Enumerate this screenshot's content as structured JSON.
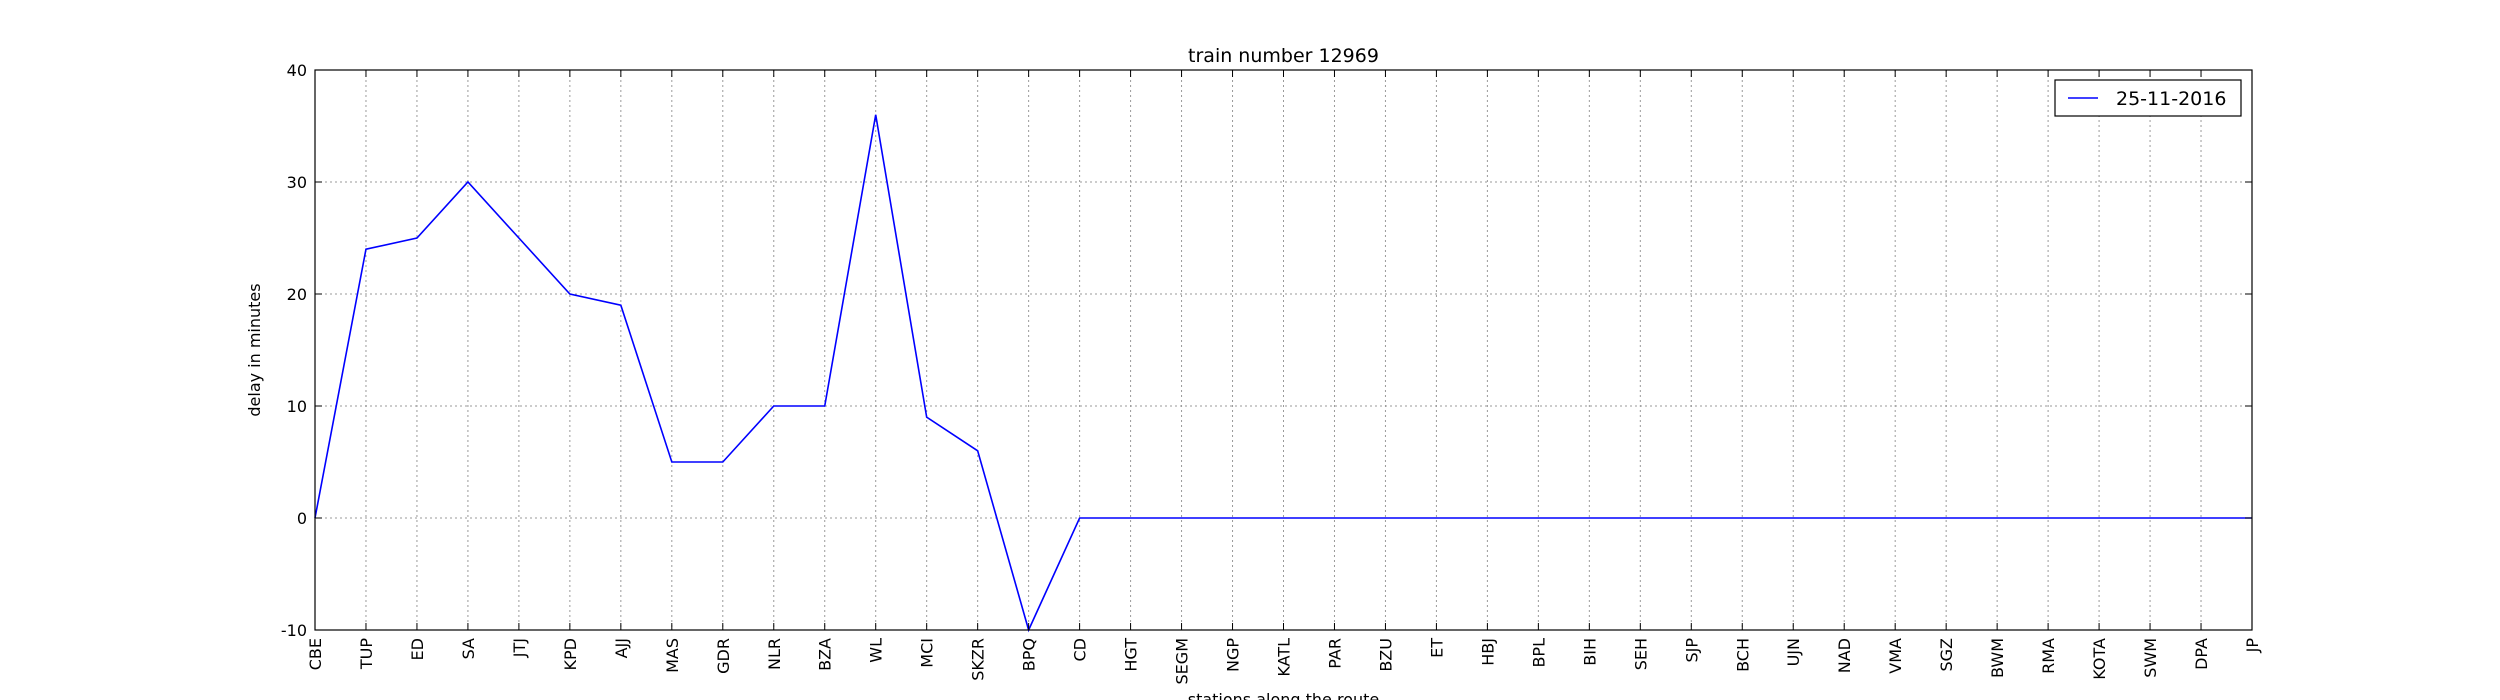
{
  "chart_data": {
    "type": "line",
    "title": "train number 12969",
    "xlabel": "stations along the route",
    "ylabel": "delay in minutes",
    "categories": [
      "CBE",
      "TUP",
      "ED",
      "SA",
      "JTJ",
      "KPD",
      "AJJ",
      "MAS",
      "GDR",
      "NLR",
      "BZA",
      "WL",
      "MCI",
      "SKZR",
      "BPQ",
      "CD",
      "HGT",
      "SEGM",
      "NGP",
      "KATL",
      "PAR",
      "BZU",
      "ET",
      "HBJ",
      "BPL",
      "BIH",
      "SEH",
      "SJP",
      "BCH",
      "UJN",
      "NAD",
      "VMA",
      "SGZ",
      "BWM",
      "RMA",
      "KOTA",
      "SWM",
      "DPA",
      "JP"
    ],
    "series": [
      {
        "name": "25-11-2016",
        "color": "#0000ff",
        "values": [
          0,
          24,
          25,
          30,
          25,
          20,
          19,
          5,
          5,
          10,
          10,
          36,
          9,
          6,
          -10,
          0,
          0,
          0,
          0,
          0,
          0,
          0,
          0,
          0,
          0,
          0,
          0,
          0,
          0,
          0,
          0,
          0,
          0,
          0,
          0,
          0,
          0,
          0,
          0
        ]
      }
    ],
    "ylim": [
      -10,
      40
    ],
    "yticks": [
      -10,
      0,
      10,
      20,
      30,
      40
    ],
    "grid": true,
    "legend_position": "top-right"
  }
}
